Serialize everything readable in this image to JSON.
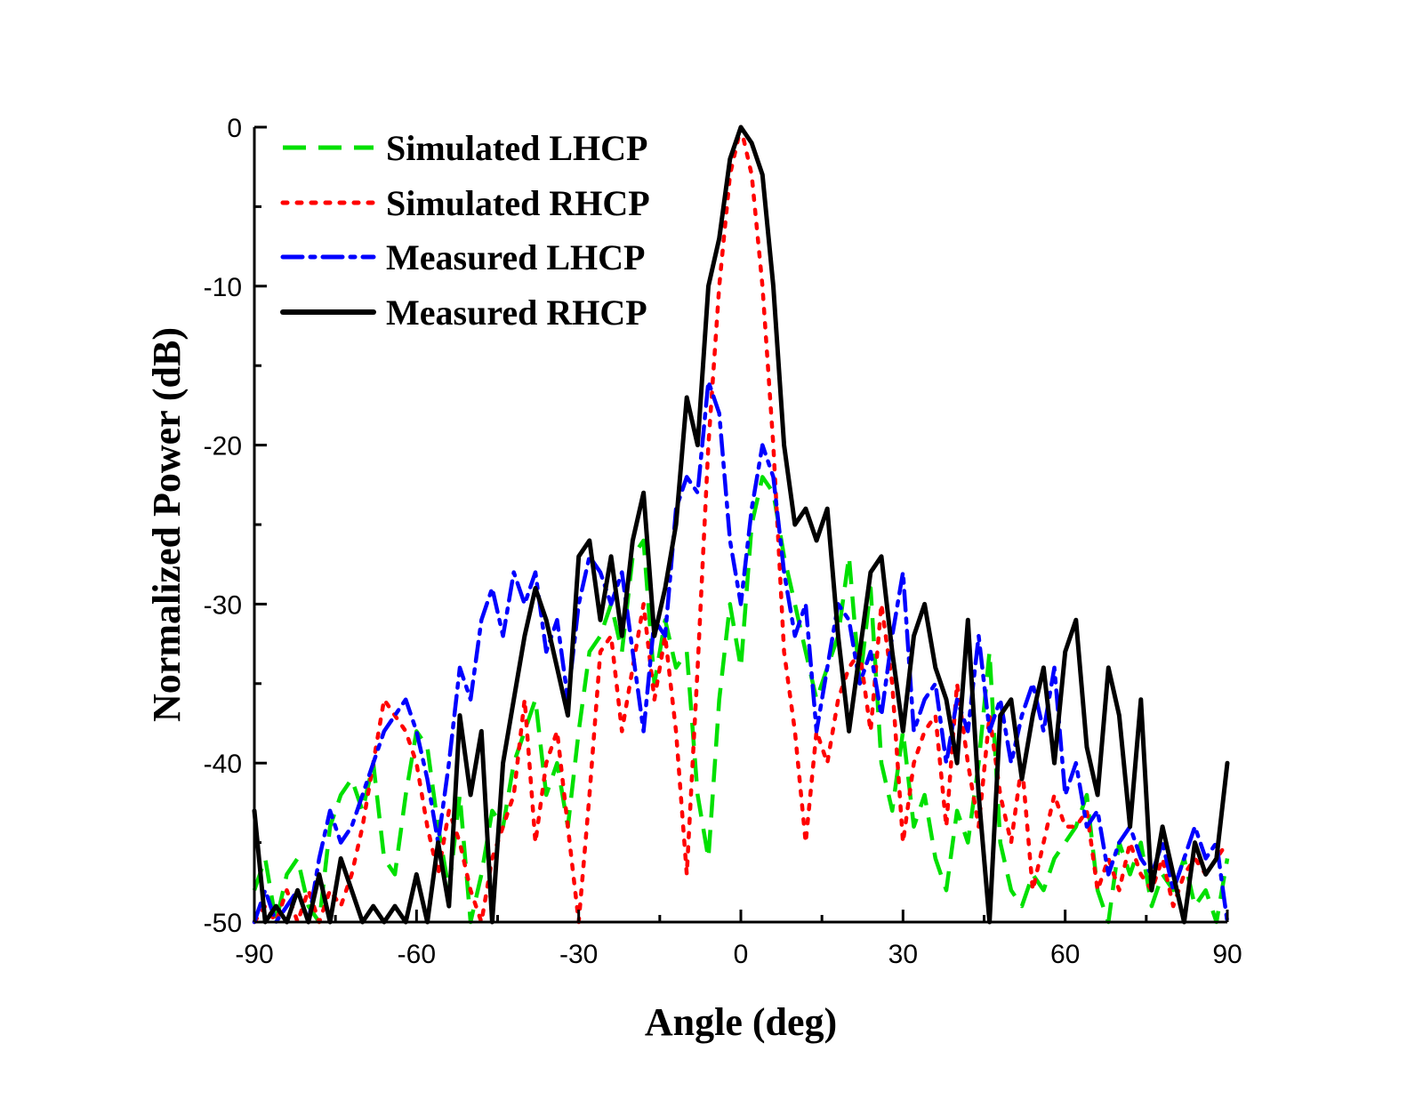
{
  "chart_data": {
    "type": "line",
    "title": "",
    "xlabel": "Angle (deg)",
    "ylabel": "Normalized Power (dB)",
    "xlim": [
      -90,
      90
    ],
    "ylim": [
      -50,
      0
    ],
    "xticks": [
      -90,
      -60,
      -30,
      0,
      30,
      60,
      90
    ],
    "yticks": [
      0,
      -10,
      -20,
      -30,
      -40,
      -50
    ],
    "xtick_labels": [
      "-90",
      "-60",
      "-30",
      "0",
      "30",
      "60",
      "90"
    ],
    "ytick_labels": [
      "0",
      "-10",
      "-20",
      "-30",
      "-40",
      "-50"
    ],
    "grid": false,
    "legend_position": "top-left",
    "series": [
      {
        "name": "Simulated LHCP",
        "color": "#00e000",
        "style": "dash",
        "x": [
          -90,
          -88,
          -86,
          -84,
          -82,
          -80,
          -78,
          -76,
          -74,
          -72,
          -70,
          -68,
          -66,
          -64,
          -62,
          -60,
          -58,
          -56,
          -54,
          -52,
          -50,
          -48,
          -46,
          -44,
          -42,
          -40,
          -38,
          -36,
          -34,
          -32,
          -30,
          -28,
          -26,
          -24,
          -22,
          -20,
          -18,
          -16,
          -14,
          -12,
          -10,
          -8,
          -6,
          -4,
          -2,
          0,
          2,
          4,
          6,
          8,
          10,
          12,
          14,
          16,
          18,
          20,
          22,
          24,
          26,
          28,
          30,
          32,
          34,
          36,
          38,
          40,
          42,
          44,
          46,
          48,
          50,
          52,
          54,
          56,
          58,
          60,
          62,
          64,
          66,
          68,
          70,
          72,
          74,
          76,
          78,
          80,
          82,
          84,
          86,
          88,
          90
        ],
        "values": [
          -48,
          -46,
          -50,
          -47,
          -46,
          -49,
          -50,
          -44,
          -42,
          -41,
          -43,
          -40,
          -46,
          -47,
          -42,
          -38,
          -39,
          -44,
          -48,
          -42,
          -50,
          -47,
          -43,
          -44,
          -40,
          -38,
          -36,
          -42,
          -40,
          -44,
          -38,
          -33,
          -32,
          -30,
          -33,
          -27,
          -26,
          -35,
          -31,
          -34,
          -33,
          -42,
          -46,
          -36,
          -30,
          -34,
          -25,
          -22,
          -23,
          -27,
          -30,
          -33,
          -36,
          -34,
          -32,
          -27,
          -35,
          -29,
          -40,
          -43,
          -38,
          -44,
          -42,
          -46,
          -48,
          -43,
          -45,
          -40,
          -33,
          -45,
          -48,
          -49,
          -47,
          -48,
          -46,
          -45,
          -44,
          -42,
          -48,
          -50,
          -45,
          -47,
          -45,
          -49,
          -47,
          -48,
          -46,
          -49,
          -48,
          -50,
          -46
        ]
      },
      {
        "name": "Simulated RHCP",
        "color": "#ff0000",
        "style": "dot",
        "x": [
          -90,
          -88,
          -86,
          -84,
          -82,
          -80,
          -78,
          -76,
          -74,
          -72,
          -70,
          -68,
          -66,
          -64,
          -62,
          -60,
          -58,
          -56,
          -54,
          -52,
          -50,
          -48,
          -46,
          -44,
          -42,
          -40,
          -38,
          -36,
          -34,
          -32,
          -30,
          -28,
          -26,
          -24,
          -22,
          -20,
          -18,
          -16,
          -14,
          -12,
          -10,
          -8,
          -6,
          -4,
          -2,
          0,
          2,
          4,
          6,
          8,
          10,
          12,
          14,
          16,
          18,
          20,
          22,
          24,
          26,
          28,
          30,
          32,
          34,
          36,
          38,
          40,
          42,
          44,
          46,
          48,
          50,
          52,
          54,
          56,
          58,
          60,
          62,
          64,
          66,
          68,
          70,
          72,
          74,
          76,
          78,
          80,
          82,
          84,
          86,
          88,
          90
        ],
        "values": [
          -50,
          -49,
          -50,
          -48,
          -50,
          -48,
          -50,
          -48,
          -49,
          -47,
          -44,
          -40,
          -36,
          -37,
          -38,
          -40,
          -44,
          -47,
          -43,
          -45,
          -48,
          -50,
          -46,
          -44,
          -42,
          -36,
          -45,
          -40,
          -38,
          -44,
          -50,
          -42,
          -33,
          -32,
          -38,
          -34,
          -30,
          -36,
          -32,
          -38,
          -47,
          -34,
          -20,
          -10,
          -3,
          0,
          -3,
          -10,
          -20,
          -33,
          -38,
          -45,
          -38,
          -40,
          -36,
          -34,
          -33,
          -38,
          -30,
          -35,
          -45,
          -40,
          -38,
          -37,
          -44,
          -35,
          -40,
          -44,
          -37,
          -42,
          -45,
          -40,
          -48,
          -45,
          -42,
          -44,
          -44,
          -43,
          -48,
          -46,
          -48,
          -45,
          -47,
          -48,
          -46,
          -49,
          -47,
          -46,
          -47,
          -46,
          -45
        ]
      },
      {
        "name": "Measured LHCP",
        "color": "#0000ff",
        "style": "dashdot",
        "x": [
          -90,
          -88,
          -86,
          -84,
          -82,
          -80,
          -78,
          -76,
          -74,
          -72,
          -70,
          -68,
          -66,
          -64,
          -62,
          -60,
          -58,
          -56,
          -54,
          -52,
          -50,
          -48,
          -46,
          -44,
          -42,
          -40,
          -38,
          -36,
          -34,
          -32,
          -30,
          -28,
          -26,
          -24,
          -22,
          -20,
          -18,
          -16,
          -14,
          -12,
          -10,
          -8,
          -6,
          -4,
          -2,
          0,
          2,
          4,
          6,
          8,
          10,
          12,
          14,
          16,
          18,
          20,
          22,
          24,
          26,
          28,
          30,
          32,
          34,
          36,
          38,
          40,
          42,
          44,
          46,
          48,
          50,
          52,
          54,
          56,
          58,
          60,
          62,
          64,
          66,
          68,
          70,
          72,
          74,
          76,
          78,
          80,
          82,
          84,
          86,
          88,
          90
        ],
        "values": [
          -50,
          -48,
          -50,
          -49,
          -48,
          -50,
          -46,
          -43,
          -45,
          -44,
          -42,
          -40,
          -38,
          -37,
          -36,
          -38,
          -41,
          -45,
          -40,
          -34,
          -36,
          -31,
          -29,
          -32,
          -28,
          -30,
          -28,
          -33,
          -31,
          -36,
          -30,
          -27,
          -28,
          -30,
          -28,
          -33,
          -38,
          -31,
          -32,
          -24,
          -22,
          -23,
          -16,
          -18,
          -26,
          -30,
          -24,
          -20,
          -22,
          -28,
          -32,
          -30,
          -38,
          -34,
          -30,
          -31,
          -35,
          -33,
          -37,
          -32,
          -28,
          -38,
          -36,
          -35,
          -40,
          -36,
          -38,
          -32,
          -38,
          -36,
          -40,
          -37,
          -35,
          -38,
          -34,
          -42,
          -40,
          -44,
          -43,
          -47,
          -45,
          -44,
          -46,
          -47,
          -45,
          -48,
          -46,
          -44,
          -46,
          -45,
          -50
        ]
      },
      {
        "name": "Measured RHCP",
        "color": "#000000",
        "style": "solid",
        "x": [
          -90,
          -88,
          -86,
          -84,
          -82,
          -80,
          -78,
          -76,
          -74,
          -72,
          -70,
          -68,
          -66,
          -64,
          -62,
          -60,
          -58,
          -56,
          -54,
          -52,
          -50,
          -48,
          -46,
          -44,
          -42,
          -40,
          -38,
          -36,
          -34,
          -32,
          -30,
          -28,
          -26,
          -24,
          -22,
          -20,
          -18,
          -16,
          -14,
          -12,
          -10,
          -8,
          -6,
          -4,
          -2,
          0,
          2,
          4,
          6,
          8,
          10,
          12,
          14,
          16,
          18,
          20,
          22,
          24,
          26,
          28,
          30,
          32,
          34,
          36,
          38,
          40,
          42,
          44,
          46,
          48,
          50,
          52,
          54,
          56,
          58,
          60,
          62,
          64,
          66,
          68,
          70,
          72,
          74,
          76,
          78,
          80,
          82,
          84,
          86,
          88,
          90
        ],
        "values": [
          -43,
          -50,
          -49,
          -50,
          -48,
          -50,
          -47,
          -50,
          -46,
          -48,
          -50,
          -49,
          -50,
          -49,
          -50,
          -47,
          -50,
          -45,
          -49,
          -37,
          -42,
          -38,
          -50,
          -40,
          -36,
          -32,
          -29,
          -31,
          -34,
          -37,
          -27,
          -26,
          -31,
          -27,
          -32,
          -26,
          -23,
          -32,
          -29,
          -25,
          -17,
          -20,
          -10,
          -7,
          -2,
          0,
          -1,
          -3,
          -10,
          -20,
          -25,
          -24,
          -26,
          -24,
          -32,
          -38,
          -33,
          -28,
          -27,
          -33,
          -38,
          -32,
          -30,
          -34,
          -36,
          -40,
          -31,
          -42,
          -50,
          -37,
          -36,
          -41,
          -37,
          -34,
          -40,
          -33,
          -31,
          -39,
          -42,
          -34,
          -37,
          -44,
          -36,
          -48,
          -44,
          -47,
          -50,
          -45,
          -47,
          -46,
          -40
        ]
      }
    ]
  }
}
